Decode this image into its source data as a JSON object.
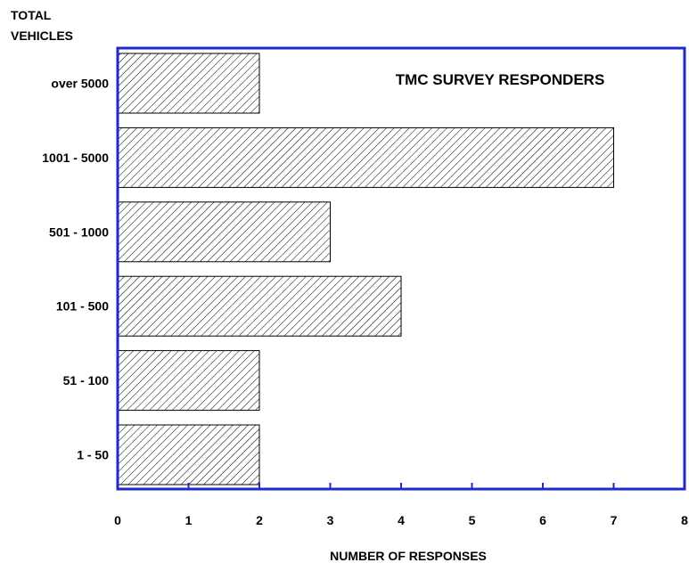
{
  "chart_data": {
    "type": "bar",
    "orientation": "horizontal",
    "title": "TMC SURVEY RESPONDERS",
    "ylabel": "TOTAL VEHICLES",
    "xlabel": "NUMBER OF RESPONSES",
    "categories": [
      "over 5000",
      "1001 - 5000",
      "501 - 1000",
      "101 - 500",
      "51 - 100",
      "1 - 50"
    ],
    "values": [
      2,
      7,
      3,
      4,
      2,
      2
    ],
    "xlim": [
      0,
      8
    ],
    "xticks": [
      "0",
      "1",
      "2",
      "3",
      "4",
      "5",
      "6",
      "7",
      "8"
    ],
    "grid": false,
    "legend": "none",
    "bar_fill": "diagonal-hatch",
    "colors": {
      "frame": "#1f2bc4",
      "bar_stroke": "#000000",
      "hatch": "#000000",
      "text": "#000000"
    }
  }
}
